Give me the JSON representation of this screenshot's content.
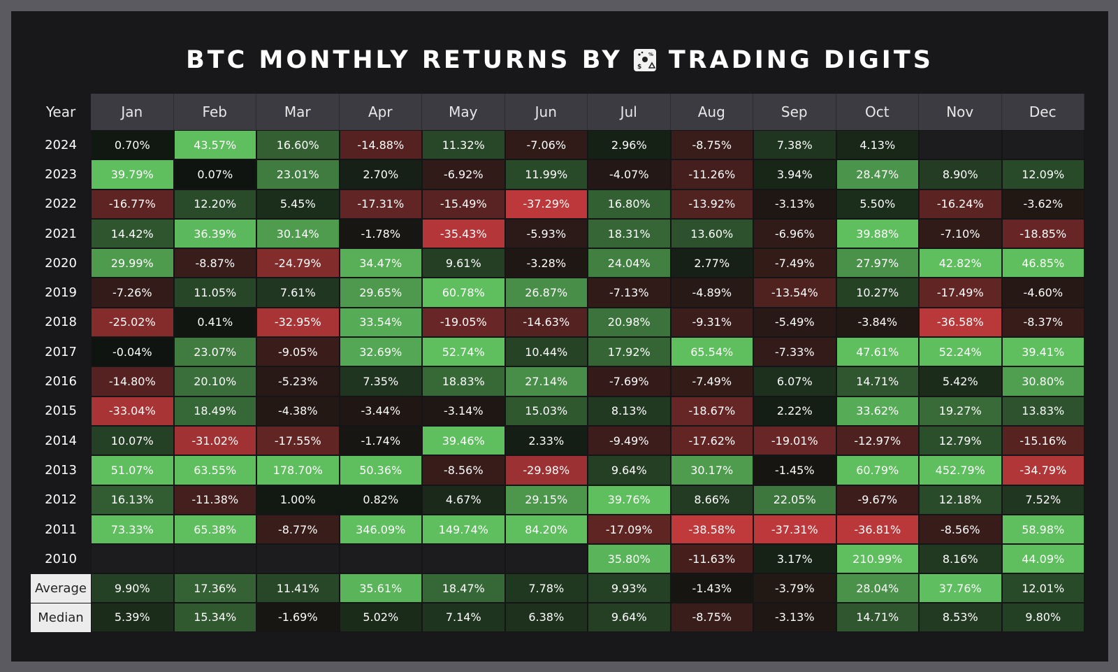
{
  "title": {
    "before_logo": "BTC MONTHLY RETURNS BY",
    "after_logo": "TRADING DIGITS",
    "logo_icon": "trading-digits-logo"
  },
  "chart_data": {
    "type": "heatmap",
    "title": "BTC MONTHLY RETURNS BY TRADING DIGITS",
    "year_header": "Year",
    "columns": [
      "Jan",
      "Feb",
      "Mar",
      "Apr",
      "May",
      "Jun",
      "Jul",
      "Aug",
      "Sep",
      "Oct",
      "Nov",
      "Dec"
    ],
    "rows": [
      {
        "year": "2024",
        "values": [
          "0.70%",
          "43.57%",
          "16.60%",
          "-14.88%",
          "11.32%",
          "-7.06%",
          "2.96%",
          "-8.75%",
          "7.38%",
          "4.13%",
          "",
          ""
        ]
      },
      {
        "year": "2023",
        "values": [
          "39.79%",
          "0.07%",
          "23.01%",
          "2.70%",
          "-6.92%",
          "11.99%",
          "-4.07%",
          "-11.26%",
          "3.94%",
          "28.47%",
          "8.90%",
          "12.09%"
        ]
      },
      {
        "year": "2022",
        "values": [
          "-16.77%",
          "12.20%",
          "5.45%",
          "-17.31%",
          "-15.49%",
          "-37.29%",
          "16.80%",
          "-13.92%",
          "-3.13%",
          "5.50%",
          "-16.24%",
          "-3.62%"
        ]
      },
      {
        "year": "2021",
        "values": [
          "14.42%",
          "36.39%",
          "30.14%",
          "-1.78%",
          "-35.43%",
          "-5.93%",
          "18.31%",
          "13.60%",
          "-6.96%",
          "39.88%",
          "-7.10%",
          "-18.85%"
        ]
      },
      {
        "year": "2020",
        "values": [
          "29.99%",
          "-8.87%",
          "-24.79%",
          "34.47%",
          "9.61%",
          "-3.28%",
          "24.04%",
          "2.77%",
          "-7.49%",
          "27.97%",
          "42.82%",
          "46.85%"
        ]
      },
      {
        "year": "2019",
        "values": [
          "-7.26%",
          "11.05%",
          "7.61%",
          "29.65%",
          "60.78%",
          "26.87%",
          "-7.13%",
          "-4.89%",
          "-13.54%",
          "10.27%",
          "-17.49%",
          "-4.60%"
        ]
      },
      {
        "year": "2018",
        "values": [
          "-25.02%",
          "0.41%",
          "-32.95%",
          "33.54%",
          "-19.05%",
          "-14.63%",
          "20.98%",
          "-9.31%",
          "-5.49%",
          "-3.84%",
          "-36.58%",
          "-8.37%"
        ]
      },
      {
        "year": "2017",
        "values": [
          "-0.04%",
          "23.07%",
          "-9.05%",
          "32.69%",
          "52.74%",
          "10.44%",
          "17.92%",
          "65.54%",
          "-7.33%",
          "47.61%",
          "52.24%",
          "39.41%"
        ]
      },
      {
        "year": "2016",
        "values": [
          "-14.80%",
          "20.10%",
          "-5.23%",
          "7.35%",
          "18.83%",
          "27.14%",
          "-7.69%",
          "-7.49%",
          "6.07%",
          "14.71%",
          "5.42%",
          "30.80%"
        ]
      },
      {
        "year": "2015",
        "values": [
          "-33.04%",
          "18.49%",
          "-4.38%",
          "-3.44%",
          "-3.14%",
          "15.03%",
          "8.13%",
          "-18.67%",
          "2.22%",
          "33.62%",
          "19.27%",
          "13.83%"
        ]
      },
      {
        "year": "2014",
        "values": [
          "10.07%",
          "-31.02%",
          "-17.55%",
          "-1.74%",
          "39.46%",
          "2.33%",
          "-9.49%",
          "-17.62%",
          "-19.01%",
          "-12.97%",
          "12.79%",
          "-15.16%"
        ]
      },
      {
        "year": "2013",
        "values": [
          "51.07%",
          "63.55%",
          "178.70%",
          "50.36%",
          "-8.56%",
          "-29.98%",
          "9.64%",
          "30.17%",
          "-1.45%",
          "60.79%",
          "452.79%",
          "-34.79%"
        ]
      },
      {
        "year": "2012",
        "values": [
          "16.13%",
          "-11.38%",
          "1.00%",
          "0.82%",
          "4.67%",
          "29.15%",
          "39.76%",
          "8.66%",
          "22.05%",
          "-9.67%",
          "12.18%",
          "7.52%"
        ]
      },
      {
        "year": "2011",
        "values": [
          "73.33%",
          "65.38%",
          "-8.77%",
          "346.09%",
          "149.74%",
          "84.20%",
          "-17.09%",
          "-38.58%",
          "-37.31%",
          "-36.81%",
          "-8.56%",
          "58.98%"
        ]
      },
      {
        "year": "2010",
        "values": [
          "",
          "",
          "",
          "",
          "",
          "",
          "35.80%",
          "-11.63%",
          "3.17%",
          "210.99%",
          "8.16%",
          "44.09%"
        ]
      }
    ],
    "stats": [
      {
        "label": "Average",
        "values": [
          "9.90%",
          "17.36%",
          "11.41%",
          "35.61%",
          "18.47%",
          "7.78%",
          "9.93%",
          "-1.43%",
          "-3.79%",
          "28.04%",
          "37.76%",
          "12.01%"
        ]
      },
      {
        "label": "Median",
        "values": [
          "5.39%",
          "15.34%",
          "-1.69%",
          "5.02%",
          "7.14%",
          "6.38%",
          "9.64%",
          "-8.75%",
          "-3.13%",
          "14.71%",
          "8.53%",
          "9.80%"
        ]
      }
    ],
    "colors": {
      "positive_max": "#5fbf5f",
      "negative_max": "#c0393b",
      "neutral": "#101410",
      "empty": "#1c1c1f",
      "header_bg": "#3b3b41",
      "background": "#18181b"
    }
  }
}
